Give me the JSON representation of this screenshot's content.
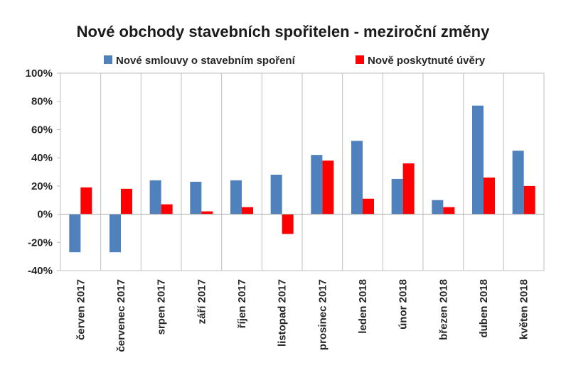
{
  "chart_data": {
    "type": "bar",
    "title": "Nové obchody stavebních spořitelen - meziroční změny",
    "categories": [
      "červen 2017",
      "červenec 2017",
      "srpen 2017",
      "září 2017",
      "říjen 2017",
      "listopad 2017",
      "prosinec 2017",
      "leden 2018",
      "únor 2018",
      "březen 2018",
      "duben 2018",
      "květen 2018"
    ],
    "series": [
      {
        "name": "Nové smlouvy o stavebním spoření",
        "color": "#4f81bd",
        "values": [
          -27,
          -27,
          24,
          23,
          24,
          28,
          42,
          52,
          25,
          10,
          77,
          45
        ]
      },
      {
        "name": "Nově poskytnuté úvěry",
        "color": "#ff0000",
        "values": [
          19,
          18,
          7,
          2,
          5,
          -14,
          38,
          11,
          36,
          5,
          26,
          20
        ]
      }
    ],
    "ylim": [
      -40,
      100
    ],
    "yticks": [
      -40,
      -20,
      0,
      20,
      40,
      60,
      80,
      100
    ],
    "ytick_labels": [
      "-40%",
      "-20%",
      "0%",
      "20%",
      "40%",
      "60%",
      "80%",
      "100%"
    ],
    "grid": "vertical category separators",
    "legend_position": "top"
  }
}
